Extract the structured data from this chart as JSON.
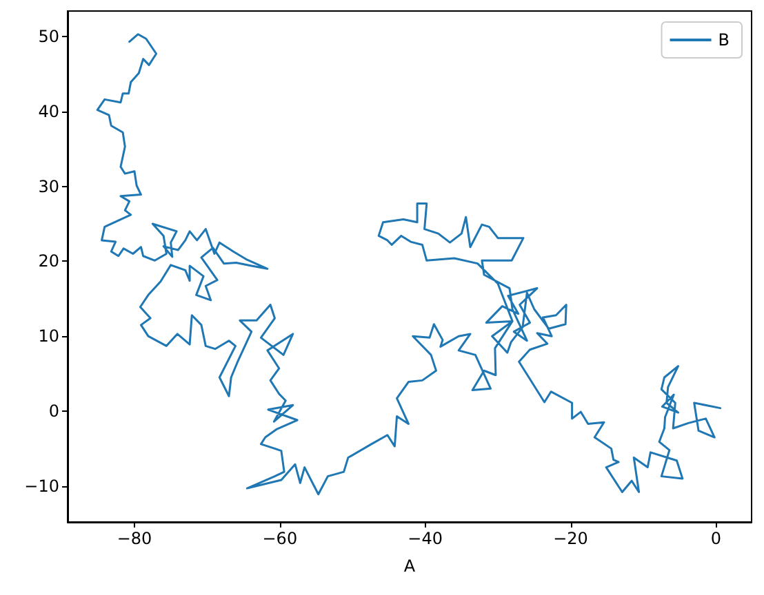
{
  "chart_data": {
    "type": "line",
    "xlabel": "A",
    "legend": "top right",
    "grid": false,
    "xlim": [
      -89.2,
      4.9
    ],
    "ylim": [
      -14.8,
      53.4
    ],
    "xticks": [
      -80,
      -60,
      -40,
      -20,
      0
    ],
    "yticks": [
      -10,
      0,
      10,
      20,
      30,
      40,
      50
    ],
    "series": [
      {
        "name": "B",
        "color": "#1f77b4",
        "x": [
          0.6,
          -3.0,
          -2.4,
          -0.2,
          -1.4,
          -3.8,
          -5.9,
          -5.6,
          -7.5,
          -7.1,
          -5.2,
          -6.6,
          -6.8,
          -5.2,
          -7.4,
          -5.8,
          -7.0,
          -7.1,
          -7.8,
          -6.4,
          -7.5,
          -4.6,
          -5.4,
          -9.0,
          -9.4,
          -11.3,
          -10.6,
          -11.6,
          -12.9,
          -15.1,
          -13.4,
          -14.1,
          -14.4,
          -16.7,
          -15.4,
          -17.6,
          -18.6,
          -19.8,
          -19.8,
          -22.7,
          -23.6,
          -27.1,
          -25.6,
          -23.2,
          -24.6,
          -22.6,
          -23.8,
          -22.0,
          -20.6,
          -20.7,
          -23.0,
          -25.0,
          -26.0,
          -26.6,
          -28.2,
          -28.7,
          -30.8,
          -28.0,
          -31.6,
          -29.4,
          -27.2,
          -28.6,
          -24.6,
          -27.0,
          -25.6,
          -27.8,
          -26.0,
          -28.0,
          -28.4,
          -31.9,
          -32.2,
          -28.1,
          -26.5,
          -30.0,
          -31.2,
          -32.2,
          -33.8,
          -34.4,
          -35.0,
          -36.6,
          -38.2,
          -40.1,
          -39.8,
          -41.1,
          -41.1,
          -43.0,
          -45.8,
          -46.4,
          -45.2,
          -44.6,
          -43.3,
          -42.0,
          -40.4,
          -39.8,
          -36.0,
          -32.8,
          -30.0,
          -28.0,
          -30.4,
          -30.3,
          -31.9,
          -33.5,
          -31.0,
          -33.1,
          -35.4,
          -33.8,
          -35.4,
          -37.9,
          -37.6,
          -38.8,
          -39.4,
          -41.7,
          -39.2,
          -38.5,
          -40.4,
          -42.3,
          -43.9,
          -42.3,
          -43.9,
          -44.2,
          -45.2,
          -47.4,
          -50.6,
          -51.2,
          -53.4,
          -54.7,
          -56.6,
          -57.2,
          -57.9,
          -59.8,
          -64.5,
          -60.7,
          -59.4,
          -59.8,
          -60.7,
          -62.6,
          -62.0,
          -60.4,
          -57.6,
          -61.6,
          -58.2,
          -60.8,
          -59.2,
          -60.1,
          -61.3,
          -60.1,
          -61.7,
          -58.2,
          -59.5,
          -62.6,
          -60.7,
          -61.3,
          -63.2,
          -65.5,
          -63.9,
          -65.8,
          -66.7,
          -67.0,
          -68.3,
          -66.1,
          -67.0,
          -68.9,
          -70.2,
          -70.8,
          -72.1,
          -72.4,
          -74.1,
          -75.6,
          -78.1,
          -79.1,
          -77.8,
          -79.2,
          -78.1,
          -76.4,
          -75.0,
          -73.0,
          -72.4,
          -72.4,
          -70.5,
          -71.5,
          -69.5,
          -70.2,
          -68.6,
          -70.8,
          -69.2,
          -67.7,
          -66.0,
          -63.9,
          -61.7,
          -64.5,
          -66.4,
          -68.3,
          -69.0,
          -70.2,
          -71.4,
          -72.4,
          -73.0,
          -74.0,
          -76.0,
          -74.8,
          -75.0,
          -74.2,
          -77.5,
          -76.0,
          -75.6,
          -77.2,
          -78.8,
          -79.1,
          -80.2,
          -81.5,
          -82.2,
          -83.2,
          -82.6,
          -84.5,
          -84.1,
          -80.5,
          -81.3,
          -80.7,
          -81.9,
          -79.1,
          -79.7,
          -80.0,
          -81.3,
          -81.9,
          -81.3,
          -81.6,
          -83.2,
          -83.5,
          -85.1,
          -84.1,
          -81.9,
          -81.6,
          -80.8,
          -80.5,
          -79.4,
          -78.8,
          -78.0,
          -77.0,
          -78.4,
          -79.5,
          -80.7
        ],
        "values": [
          0.4,
          1.1,
          -2.6,
          -3.5,
          -1.0,
          -1.6,
          -2.3,
          1.1,
          2.9,
          4.5,
          6.0,
          3.2,
          1.1,
          -0.2,
          0.6,
          2.2,
          -0.8,
          -2.3,
          -4.1,
          -5.2,
          -8.7,
          -9.0,
          -6.6,
          -5.5,
          -7.5,
          -6.2,
          -10.8,
          -9.3,
          -10.8,
          -7.5,
          -6.8,
          -6.5,
          -5.0,
          -3.5,
          -1.5,
          -1.7,
          -0.1,
          -1.0,
          1.1,
          2.6,
          1.2,
          6.6,
          8.2,
          9.0,
          10.4,
          10.0,
          12.5,
          12.8,
          14.2,
          11.6,
          11.0,
          13.6,
          15.8,
          11.2,
          9.2,
          7.8,
          10.0,
          12.0,
          11.8,
          14.0,
          13.0,
          15.4,
          16.4,
          14.2,
          11.8,
          10.6,
          9.4,
          13.6,
          16.4,
          18.2,
          20.1,
          20.1,
          23.1,
          23.1,
          24.6,
          24.9,
          21.9,
          25.9,
          23.7,
          22.5,
          23.7,
          24.3,
          27.7,
          27.7,
          25.2,
          25.6,
          25.2,
          23.4,
          22.8,
          22.2,
          23.4,
          22.6,
          22.2,
          20.1,
          20.4,
          19.7,
          17.0,
          12.0,
          8.4,
          4.8,
          5.4,
          2.8,
          3.0,
          7.5,
          8.1,
          10.3,
          10.0,
          8.6,
          9.5,
          11.6,
          9.8,
          10.0,
          7.5,
          5.4,
          4.1,
          3.9,
          1.7,
          -1.7,
          -0.7,
          -4.7,
          -3.2,
          -4.4,
          -6.2,
          -8.1,
          -8.7,
          -11.1,
          -7.5,
          -9.6,
          -7.1,
          -9.2,
          -10.3,
          -8.7,
          -8.1,
          -5.3,
          -5.0,
          -4.4,
          -3.5,
          -2.4,
          -1.2,
          0.2,
          0.8,
          -1.4,
          1.4,
          2.3,
          4.1,
          5.7,
          8.1,
          10.3,
          7.5,
          9.8,
          12.4,
          14.2,
          12.1,
          12.1,
          10.6,
          6.6,
          4.5,
          2.0,
          4.5,
          8.7,
          9.4,
          8.3,
          8.7,
          11.5,
          12.8,
          8.9,
          10.3,
          8.7,
          10.0,
          11.5,
          12.4,
          13.9,
          15.5,
          17.3,
          19.5,
          18.8,
          17.4,
          19.4,
          18.0,
          15.5,
          14.8,
          16.7,
          17.5,
          20.5,
          21.8,
          19.7,
          19.8,
          19.4,
          19.0,
          20.2,
          21.3,
          22.5,
          21.0,
          24.3,
          22.8,
          24.0,
          22.8,
          21.5,
          22.0,
          20.6,
          22.5,
          24.0,
          25.0,
          23.4,
          21.0,
          20.1,
          20.7,
          21.9,
          21.0,
          21.7,
          20.7,
          21.3,
          22.6,
          22.8,
          24.6,
          26.2,
          26.8,
          28.0,
          28.7,
          28.9,
          30.1,
          32.0,
          31.7,
          32.6,
          35.3,
          37.2,
          38.1,
          39.5,
          40.2,
          41.6,
          41.2,
          42.4,
          42.4,
          43.9,
          45.1,
          47.0,
          46.2,
          47.7,
          49.7,
          50.3,
          49.3
        ]
      }
    ]
  }
}
